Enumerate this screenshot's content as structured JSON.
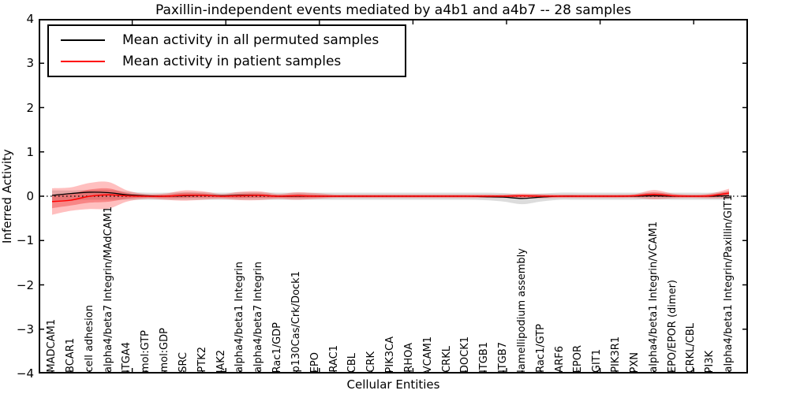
{
  "title": "Paxillin-independent events mediated by a4b1 and a4b7 -- 28 samples",
  "axes": {
    "ylabel": "Inferred Activity",
    "xlabel": "Cellular Entities",
    "yticks": [
      "4",
      "3",
      "2",
      "1",
      "0",
      "−1",
      "−2",
      "−3",
      "−4"
    ]
  },
  "legend": {
    "items": [
      {
        "label": "Mean activity in all permuted samples",
        "color": "#000000"
      },
      {
        "label": "Mean activity in patient samples",
        "color": "#ff0000"
      }
    ]
  },
  "chart_data": {
    "type": "line",
    "title": "Paxillin-independent events mediated by a4b1 and a4b7 -- 28 samples",
    "xlabel": "Cellular Entities",
    "ylabel": "Inferred Activity",
    "ylim": [
      -4,
      4
    ],
    "grid": false,
    "legend_position": "upper left",
    "zero_line": {
      "style": "dotted",
      "color": "#000000",
      "y": 0
    },
    "categories": [
      "MADCAM1",
      "BCAR1",
      "cell adhesion",
      "alpha4/beta7 Integrin/MAdCAM1",
      "ITGA4",
      "mol:GTP",
      "mol:GDP",
      "SRC",
      "PTK2",
      "JAK2",
      "alpha4/beta1 Integrin",
      "alpha4/beta7 Integrin",
      "Rac1/GDP",
      "p130Cas/Crk/Dock1",
      "EPO",
      "RAC1",
      "CBL",
      "CRK",
      "PIK3CA",
      "RHOA",
      "VCAM1",
      "CRKL",
      "DOCK1",
      "ITGB1",
      "ITGB7",
      "lamellipodium assembly",
      "Rac1/GTP",
      "ARF6",
      "EPOR",
      "GIT1",
      "PIK3R1",
      "PXN",
      "alpha4/beta1 Integrin/VCAM1",
      "EPO/EPOR (dimer)",
      "CRKL/CBL",
      "PI3K",
      "alpha4/beta1 Integrin/Paxillin/GIT1"
    ],
    "series": [
      {
        "name": "Mean activity in all permuted samples",
        "color": "#000000",
        "values": [
          0.02,
          0.06,
          0.09,
          0.08,
          0.03,
          0.01,
          0.0,
          0.01,
          0.02,
          0.01,
          0.02,
          0.02,
          0.0,
          0.0,
          0.0,
          0.0,
          0.0,
          0.0,
          0.0,
          0.0,
          0.0,
          0.0,
          0.0,
          -0.01,
          -0.02,
          -0.05,
          -0.02,
          0.0,
          0.0,
          0.0,
          0.0,
          0.0,
          0.01,
          0.0,
          0.0,
          0.0,
          0.01
        ]
      },
      {
        "name": "Mean activity in patient samples",
        "color": "#ff0000",
        "values": [
          -0.12,
          -0.09,
          0.0,
          0.03,
          0.01,
          0.0,
          0.0,
          0.02,
          0.02,
          0.0,
          0.01,
          0.02,
          0.0,
          0.01,
          0.0,
          0.0,
          0.0,
          0.0,
          0.0,
          0.0,
          0.0,
          0.0,
          0.0,
          0.0,
          0.0,
          0.01,
          0.0,
          0.0,
          0.0,
          0.0,
          0.0,
          0.01,
          0.04,
          0.01,
          0.0,
          0.01,
          0.07
        ]
      }
    ],
    "bands": [
      {
        "name": "permuted-samples-std-band",
        "color": "rgba(130,130,130,0.28)",
        "upper": [
          0.13,
          0.13,
          0.14,
          0.14,
          0.1,
          0.08,
          0.08,
          0.09,
          0.09,
          0.08,
          0.09,
          0.09,
          0.08,
          0.08,
          0.08,
          0.08,
          0.08,
          0.08,
          0.08,
          0.08,
          0.08,
          0.08,
          0.08,
          0.08,
          0.07,
          0.04,
          0.06,
          0.08,
          0.08,
          0.08,
          0.08,
          0.08,
          0.08,
          0.08,
          0.08,
          0.08,
          0.1
        ],
        "lower": [
          -0.1,
          -0.09,
          -0.08,
          -0.08,
          -0.08,
          -0.08,
          -0.08,
          -0.08,
          -0.08,
          -0.08,
          -0.08,
          -0.08,
          -0.08,
          -0.08,
          -0.08,
          -0.08,
          -0.08,
          -0.08,
          -0.08,
          -0.08,
          -0.08,
          -0.08,
          -0.08,
          -0.09,
          -0.12,
          -0.18,
          -0.12,
          -0.08,
          -0.08,
          -0.08,
          -0.08,
          -0.08,
          -0.07,
          -0.08,
          -0.08,
          -0.08,
          -0.08
        ]
      },
      {
        "name": "patient-samples-std-band",
        "color": "rgba(255,0,0,0.25)",
        "upper": [
          0.18,
          0.2,
          0.3,
          0.32,
          0.13,
          0.05,
          0.06,
          0.13,
          0.11,
          0.05,
          0.1,
          0.11,
          0.05,
          0.09,
          0.07,
          0.04,
          0.04,
          0.04,
          0.04,
          0.04,
          0.04,
          0.04,
          0.04,
          0.04,
          0.04,
          0.06,
          0.05,
          0.04,
          0.04,
          0.04,
          0.04,
          0.05,
          0.14,
          0.06,
          0.04,
          0.06,
          0.17
        ],
        "lower": [
          -0.42,
          -0.33,
          -0.29,
          -0.28,
          -0.12,
          -0.06,
          -0.08,
          -0.1,
          -0.08,
          -0.06,
          -0.09,
          -0.09,
          -0.06,
          -0.08,
          -0.06,
          -0.04,
          -0.04,
          -0.04,
          -0.04,
          -0.04,
          -0.04,
          -0.04,
          -0.04,
          -0.04,
          -0.04,
          -0.05,
          -0.05,
          -0.04,
          -0.04,
          -0.04,
          -0.04,
          -0.04,
          -0.07,
          -0.05,
          -0.04,
          -0.05,
          -0.05
        ]
      }
    ]
  }
}
